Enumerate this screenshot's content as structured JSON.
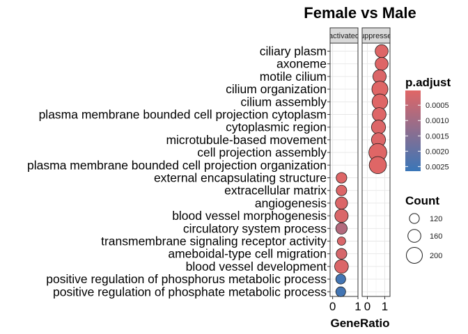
{
  "chart_data": {
    "type": "scatter",
    "title": "Female vs Male",
    "xlabel": "GeneRatio",
    "ylabel": "",
    "facets": [
      {
        "label": "activated",
        "xticks": [
          {
            "v": 0,
            "t": "0"
          },
          {
            "v": 1,
            "t": "1"
          }
        ],
        "xlim": [
          -0.1,
          1.0
        ]
      },
      {
        "label": "suppressed",
        "xticks": [
          {
            "v": 0,
            "t": "0"
          },
          {
            "v": 1,
            "t": "1"
          }
        ],
        "xlim": [
          -0.3,
          1.3
        ]
      }
    ],
    "terms": [
      "ciliary plasm",
      "axoneme",
      "motile cilium",
      "cilium organization",
      "cilium assembly",
      "plasma membrane bounded cell projection cytoplasm",
      "cytoplasmic region",
      "microtubule-based movement",
      "cell projection assembly",
      "plasma membrane bounded cell projection organization",
      "external encapsulating structure",
      "extracellular matrix",
      "angiogenesis",
      "blood vessel morphogenesis",
      "circulatory system process",
      "transmembrane signaling receptor activity",
      "ameboidal-type cell migration",
      "blood vessel development",
      "positive regulation of phosphorus metabolic process",
      "positive regulation of phosphate metabolic process"
    ],
    "points": [
      {
        "term": "ciliary plasm",
        "facet": 1,
        "x": 0.82,
        "count": 160,
        "p_adjust": 5e-05
      },
      {
        "term": "axoneme",
        "facet": 1,
        "x": 0.82,
        "count": 160,
        "p_adjust": 5e-05
      },
      {
        "term": "motile cilium",
        "facet": 1,
        "x": 0.7,
        "count": 165,
        "p_adjust": 0.0001
      },
      {
        "term": "cilium organization",
        "facet": 1,
        "x": 0.72,
        "count": 200,
        "p_adjust": 3e-05
      },
      {
        "term": "cilium assembly",
        "facet": 1,
        "x": 0.72,
        "count": 195,
        "p_adjust": 3e-05
      },
      {
        "term": "plasma membrane bounded cell projection cytoplasm",
        "facet": 1,
        "x": 0.68,
        "count": 170,
        "p_adjust": 5e-05
      },
      {
        "term": "cytoplasmic region",
        "facet": 1,
        "x": 0.64,
        "count": 175,
        "p_adjust": 8e-05
      },
      {
        "term": "microtubule-based movement",
        "facet": 1,
        "x": 0.64,
        "count": 175,
        "p_adjust": 8e-05
      },
      {
        "term": "cell projection assembly",
        "facet": 1,
        "x": 0.6,
        "count": 225,
        "p_adjust": 3e-05
      },
      {
        "term": "plasma membrane bounded cell projection organization",
        "facet": 1,
        "x": 0.6,
        "count": 215,
        "p_adjust": 3e-05
      },
      {
        "term": "external encapsulating structure",
        "facet": 0,
        "x": 0.35,
        "count": 130,
        "p_adjust": 5e-05
      },
      {
        "term": "extracellular matrix",
        "facet": 0,
        "x": 0.35,
        "count": 128,
        "p_adjust": 8e-05
      },
      {
        "term": "angiogenesis",
        "facet": 0,
        "x": 0.35,
        "count": 150,
        "p_adjust": 0.0001
      },
      {
        "term": "blood vessel morphogenesis",
        "facet": 0,
        "x": 0.35,
        "count": 165,
        "p_adjust": 0.00012
      },
      {
        "term": "circulatory system process",
        "facet": 0,
        "x": 0.35,
        "count": 140,
        "p_adjust": 0.00075
      },
      {
        "term": "transmembrane signaling receptor activity",
        "facet": 0,
        "x": 0.35,
        "count": 100,
        "p_adjust": 0.00015
      },
      {
        "term": "ameboidal-type cell migration",
        "facet": 0,
        "x": 0.35,
        "count": 130,
        "p_adjust": 0.00018
      },
      {
        "term": "blood vessel development",
        "facet": 0,
        "x": 0.35,
        "count": 170,
        "p_adjust": 0.0001
      },
      {
        "term": "positive regulation of phosphorus metabolic process",
        "facet": 0,
        "x": 0.32,
        "count": 120,
        "p_adjust": 0.0025
      },
      {
        "term": "positive regulation of phosphate metabolic process",
        "facet": 0,
        "x": 0.32,
        "count": 120,
        "p_adjust": 0.0025
      }
    ],
    "color_legend": {
      "title": "p.adjust",
      "ticks": [
        {
          "v": 0.0005,
          "t": "0.0005"
        },
        {
          "v": 0.001,
          "t": "0.0010"
        },
        {
          "v": 0.0015,
          "t": "0.0015"
        },
        {
          "v": 0.002,
          "t": "0.0020"
        },
        {
          "v": 0.0025,
          "t": "0.0025"
        }
      ],
      "range": [
        2e-05,
        0.00265
      ],
      "low_color": "#e06666",
      "high_color": "#3a76b8"
    },
    "size_legend": {
      "title": "Count",
      "entries": [
        {
          "v": 120,
          "t": "120"
        },
        {
          "v": 160,
          "t": "160"
        },
        {
          "v": 200,
          "t": "200"
        }
      ]
    },
    "grid": true,
    "legend_position": "right"
  }
}
